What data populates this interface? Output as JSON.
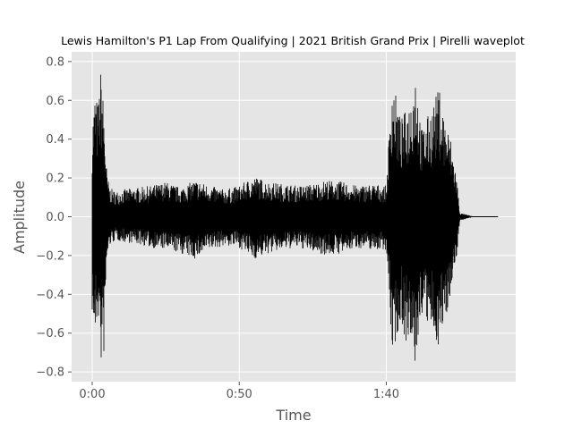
{
  "chart_data": {
    "type": "line",
    "title": "Lewis Hamilton's P1 Lap From Qualifying | 2021 British Grand Prix | Pirelli waveplot",
    "xlabel": "Time",
    "ylabel": "Amplitude",
    "xlim": [
      -7,
      144
    ],
    "ylim": [
      -0.85,
      0.85
    ],
    "xticks": [
      {
        "value": 0,
        "label": "0:00"
      },
      {
        "value": 50,
        "label": "0:50"
      },
      {
        "value": 100,
        "label": "1:40"
      }
    ],
    "yticks": [
      {
        "value": -0.8,
        "label": "−0.8"
      },
      {
        "value": -0.6,
        "label": "−0.6"
      },
      {
        "value": -0.4,
        "label": "−0.4"
      },
      {
        "value": -0.2,
        "label": "−0.2"
      },
      {
        "value": 0.0,
        "label": "0.0"
      },
      {
        "value": 0.2,
        "label": "0.2"
      },
      {
        "value": 0.4,
        "label": "0.4"
      },
      {
        "value": 0.6,
        "label": "0.6"
      },
      {
        "value": 0.8,
        "label": "0.8"
      }
    ],
    "grid": true,
    "style": "ggplot",
    "colors": {
      "background": "#e5e5e5",
      "grid": "#ffffff",
      "line": "#000000"
    },
    "series": [
      {
        "x": [
          0,
          1,
          2,
          3,
          4,
          5,
          6,
          8,
          10,
          15,
          20,
          25,
          30,
          35,
          40,
          45,
          50,
          55,
          60,
          65,
          70,
          75,
          80,
          85,
          90,
          95,
          100,
          102,
          105,
          108,
          110,
          112,
          115,
          118,
          120,
          122,
          124,
          125,
          130,
          138
        ],
        "upper": [
          0.5,
          0.65,
          0.58,
          0.78,
          0.55,
          0.22,
          0.15,
          0.13,
          0.14,
          0.15,
          0.16,
          0.18,
          0.15,
          0.19,
          0.16,
          0.14,
          0.16,
          0.21,
          0.18,
          0.17,
          0.16,
          0.17,
          0.19,
          0.18,
          0.16,
          0.17,
          0.16,
          0.72,
          0.5,
          0.6,
          0.78,
          0.45,
          0.55,
          0.67,
          0.5,
          0.4,
          0.2,
          0.02,
          0.0,
          0.0
        ],
        "lower": [
          -0.5,
          -0.66,
          -0.5,
          -0.78,
          -0.72,
          -0.22,
          -0.15,
          -0.12,
          -0.13,
          -0.14,
          -0.16,
          -0.17,
          -0.19,
          -0.22,
          -0.17,
          -0.15,
          -0.16,
          -0.22,
          -0.19,
          -0.17,
          -0.16,
          -0.18,
          -0.2,
          -0.19,
          -0.16,
          -0.17,
          -0.17,
          -0.71,
          -0.55,
          -0.72,
          -0.78,
          -0.5,
          -0.6,
          -0.67,
          -0.55,
          -0.38,
          -0.2,
          -0.02,
          0.0,
          0.0
        ]
      }
    ]
  }
}
